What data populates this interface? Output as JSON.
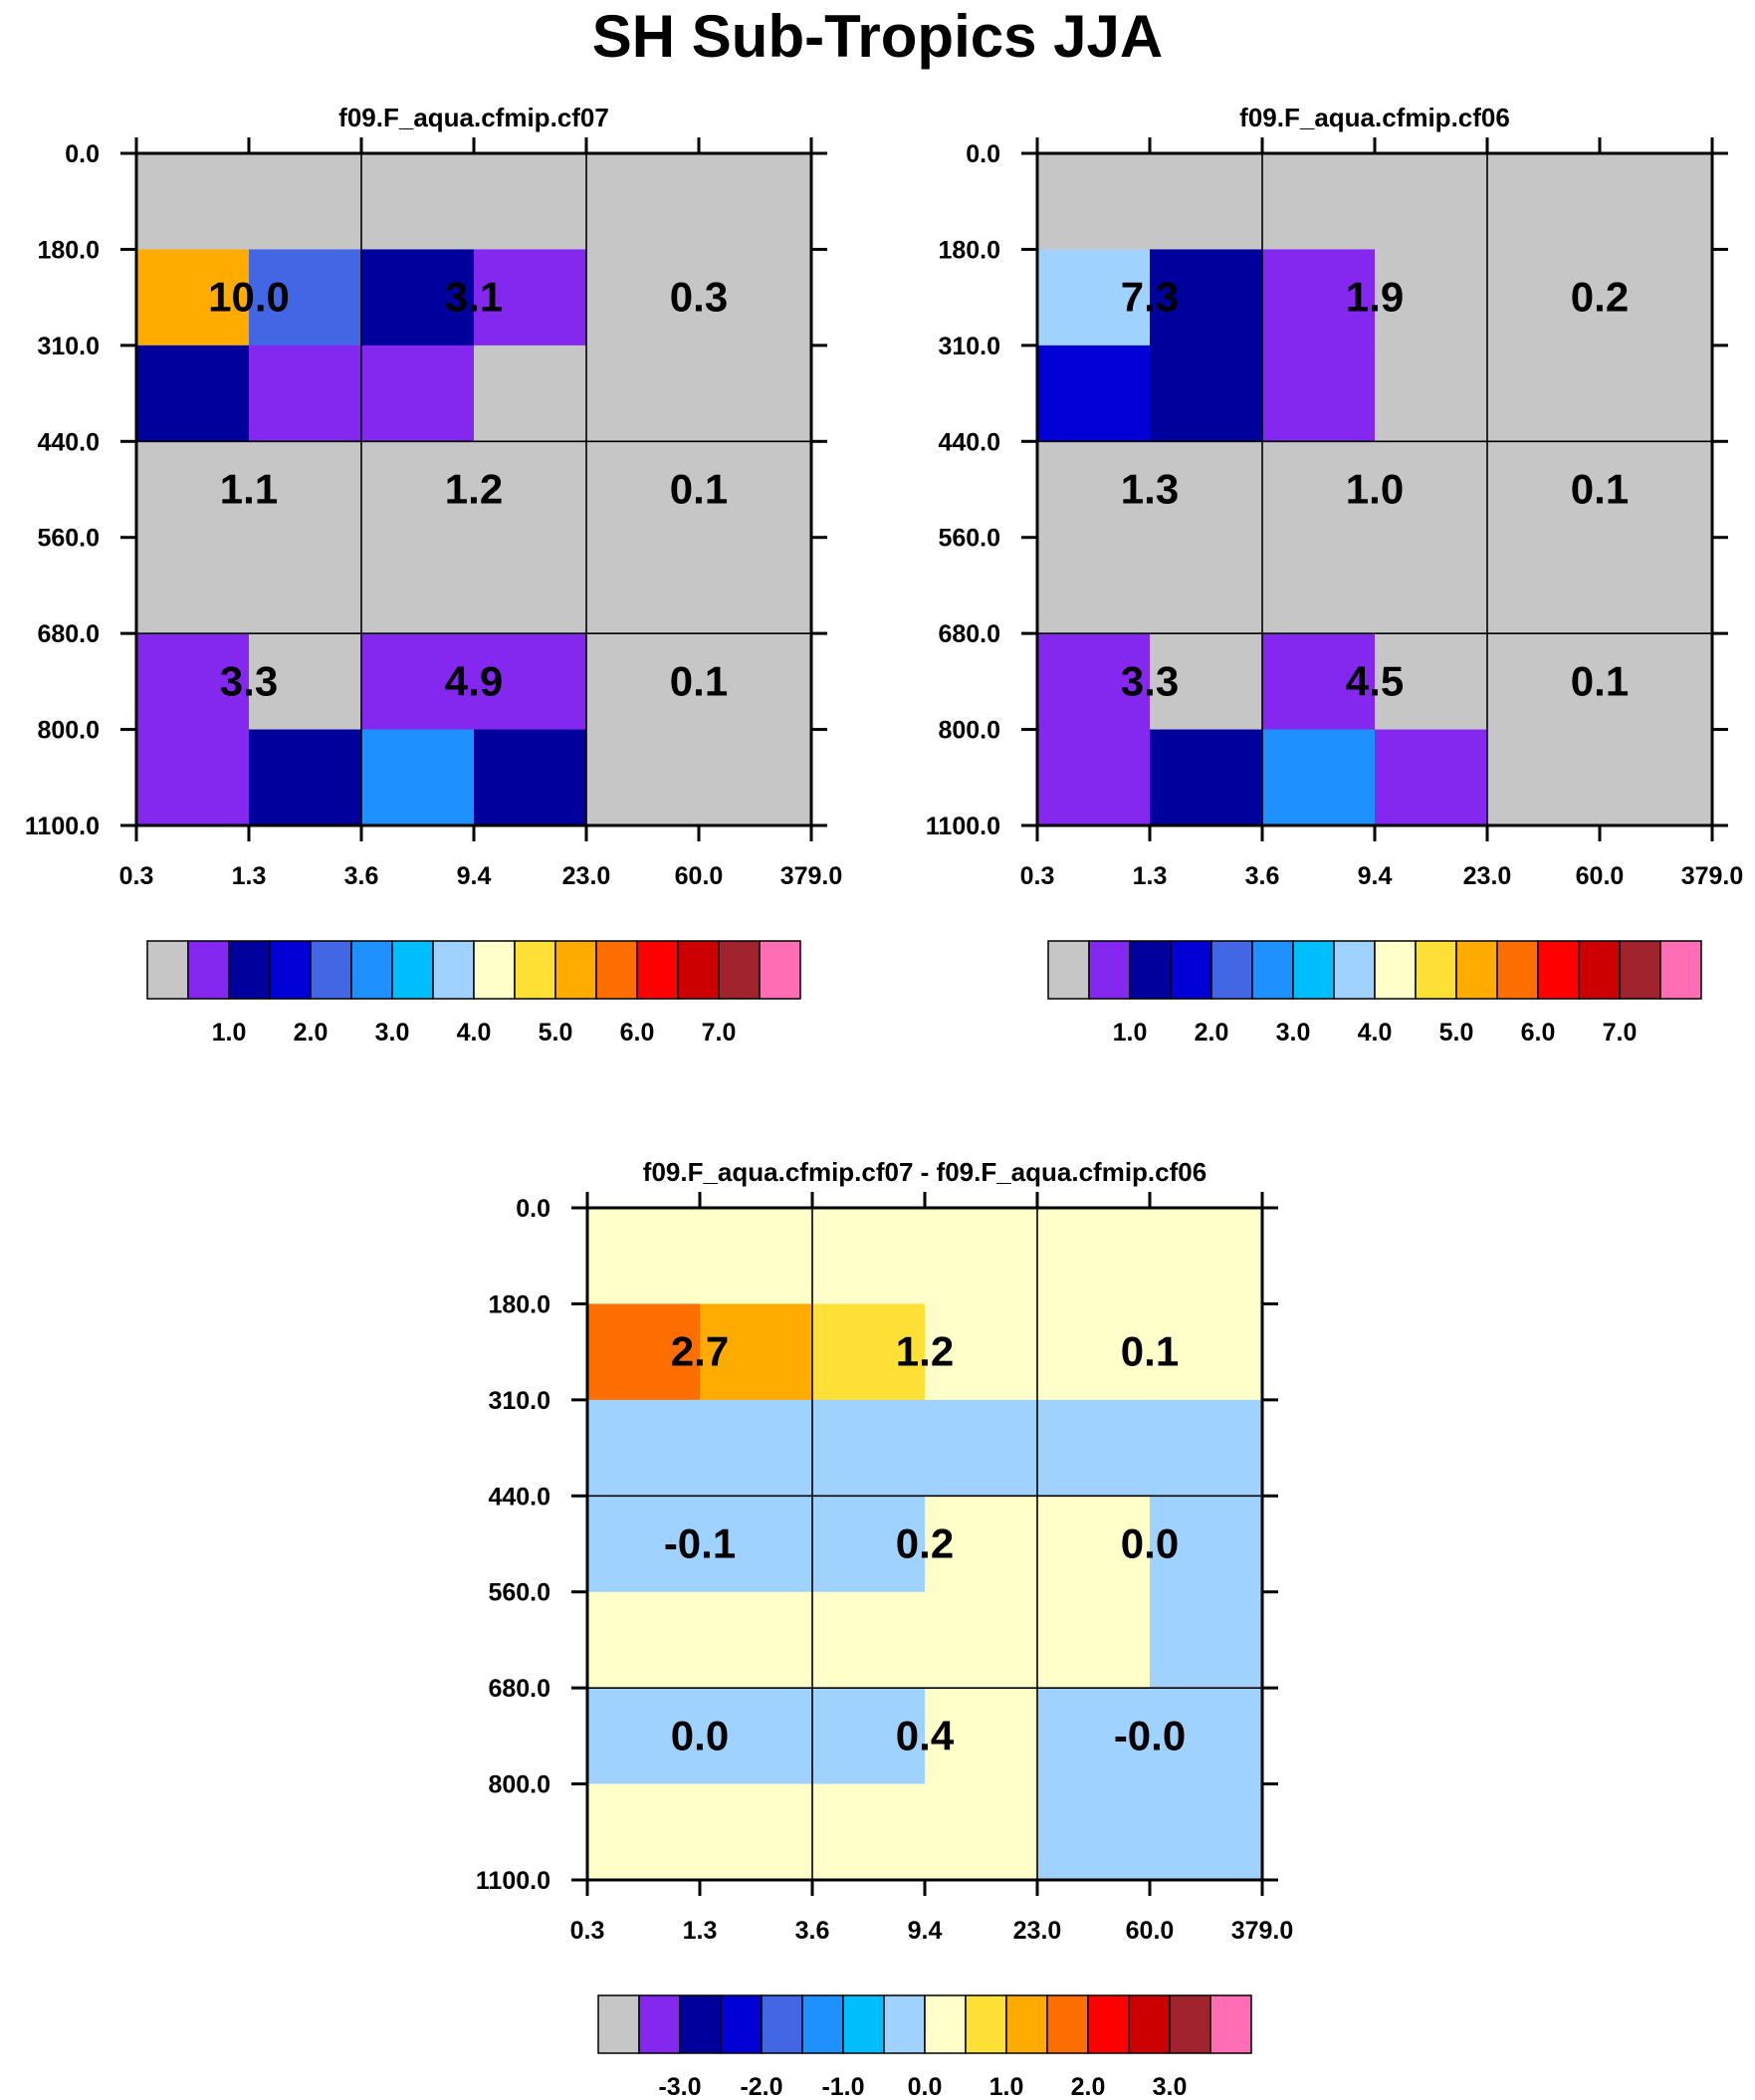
{
  "title": "SH Sub-Tropics JJA",
  "colors": {
    "palette": [
      "#c6c6c6",
      "#8428f0",
      "#00009c",
      "#0000d6",
      "#4366e4",
      "#1f90ff",
      "#00beff",
      "#a0d2ff",
      "#ffffca",
      "#ffe036",
      "#ffab00",
      "#ff6e00",
      "#ff0000",
      "#cc0000",
      "#a0232d",
      "#ff6eb4"
    ],
    "grid": "#000000",
    "text": "#000000"
  },
  "chart_data": [
    {
      "type": "heatmap",
      "title": "f09.F_aqua.cfmip.cf07",
      "x_ticks": [
        "0.3",
        "1.3",
        "3.6",
        "9.4",
        "23.0",
        "60.0",
        "379.0"
      ],
      "y_ticks": [
        "0.0",
        "180.0",
        "310.0",
        "440.0",
        "560.0",
        "680.0",
        "800.0",
        "1100.0"
      ],
      "grid_labels": [
        [
          "10.0",
          "3.1",
          "0.3"
        ],
        [
          "1.1",
          "1.2",
          "0.1"
        ],
        [
          "3.3",
          "4.9",
          "0.1"
        ]
      ],
      "cell_color_index": [
        [
          0,
          0,
          0,
          0,
          0,
          0
        ],
        [
          10,
          4,
          2,
          1,
          0,
          0
        ],
        [
          2,
          1,
          1,
          0,
          0,
          0
        ],
        [
          0,
          0,
          0,
          0,
          0,
          0
        ],
        [
          0,
          0,
          0,
          0,
          0,
          0
        ],
        [
          1,
          0,
          1,
          1,
          0,
          0
        ],
        [
          1,
          2,
          5,
          2,
          0,
          0
        ]
      ],
      "colorbar": {
        "labels": [
          "1.0",
          "2.0",
          "3.0",
          "4.0",
          "5.0",
          "6.0",
          "7.0"
        ]
      }
    },
    {
      "type": "heatmap",
      "title": "f09.F_aqua.cfmip.cf06",
      "x_ticks": [
        "0.3",
        "1.3",
        "3.6",
        "9.4",
        "23.0",
        "60.0",
        "379.0"
      ],
      "y_ticks": [
        "0.0",
        "180.0",
        "310.0",
        "440.0",
        "560.0",
        "680.0",
        "800.0",
        "1100.0"
      ],
      "grid_labels": [
        [
          "7.3",
          "1.9",
          "0.2"
        ],
        [
          "1.3",
          "1.0",
          "0.1"
        ],
        [
          "3.3",
          "4.5",
          "0.1"
        ]
      ],
      "cell_color_index": [
        [
          0,
          0,
          0,
          0,
          0,
          0
        ],
        [
          7,
          2,
          1,
          0,
          0,
          0
        ],
        [
          3,
          2,
          1,
          0,
          0,
          0
        ],
        [
          0,
          0,
          0,
          0,
          0,
          0
        ],
        [
          0,
          0,
          0,
          0,
          0,
          0
        ],
        [
          1,
          0,
          1,
          0,
          0,
          0
        ],
        [
          1,
          2,
          5,
          1,
          0,
          0
        ]
      ],
      "colorbar": {
        "labels": [
          "1.0",
          "2.0",
          "3.0",
          "4.0",
          "5.0",
          "6.0",
          "7.0"
        ]
      }
    },
    {
      "type": "heatmap",
      "title": "f09.F_aqua.cfmip.cf07 - f09.F_aqua.cfmip.cf06",
      "x_ticks": [
        "0.3",
        "1.3",
        "3.6",
        "9.4",
        "23.0",
        "60.0",
        "379.0"
      ],
      "y_ticks": [
        "0.0",
        "180.0",
        "310.0",
        "440.0",
        "560.0",
        "680.0",
        "800.0",
        "1100.0"
      ],
      "grid_labels": [
        [
          "2.7",
          "1.2",
          "0.1"
        ],
        [
          "-0.1",
          "0.2",
          "0.0"
        ],
        [
          "0.0",
          "0.4",
          "-0.0"
        ]
      ],
      "cell_color_index": [
        [
          8,
          8,
          8,
          8,
          8,
          8
        ],
        [
          11,
          10,
          9,
          8,
          8,
          8
        ],
        [
          7,
          7,
          7,
          7,
          7,
          7
        ],
        [
          7,
          7,
          7,
          8,
          8,
          7
        ],
        [
          8,
          8,
          8,
          8,
          8,
          7
        ],
        [
          7,
          7,
          7,
          8,
          7,
          7
        ],
        [
          8,
          8,
          8,
          8,
          7,
          7
        ]
      ],
      "colorbar": {
        "labels": [
          "-3.0",
          "-2.0",
          "-1.0",
          "0.0",
          "1.0",
          "2.0",
          "3.0"
        ]
      }
    }
  ]
}
